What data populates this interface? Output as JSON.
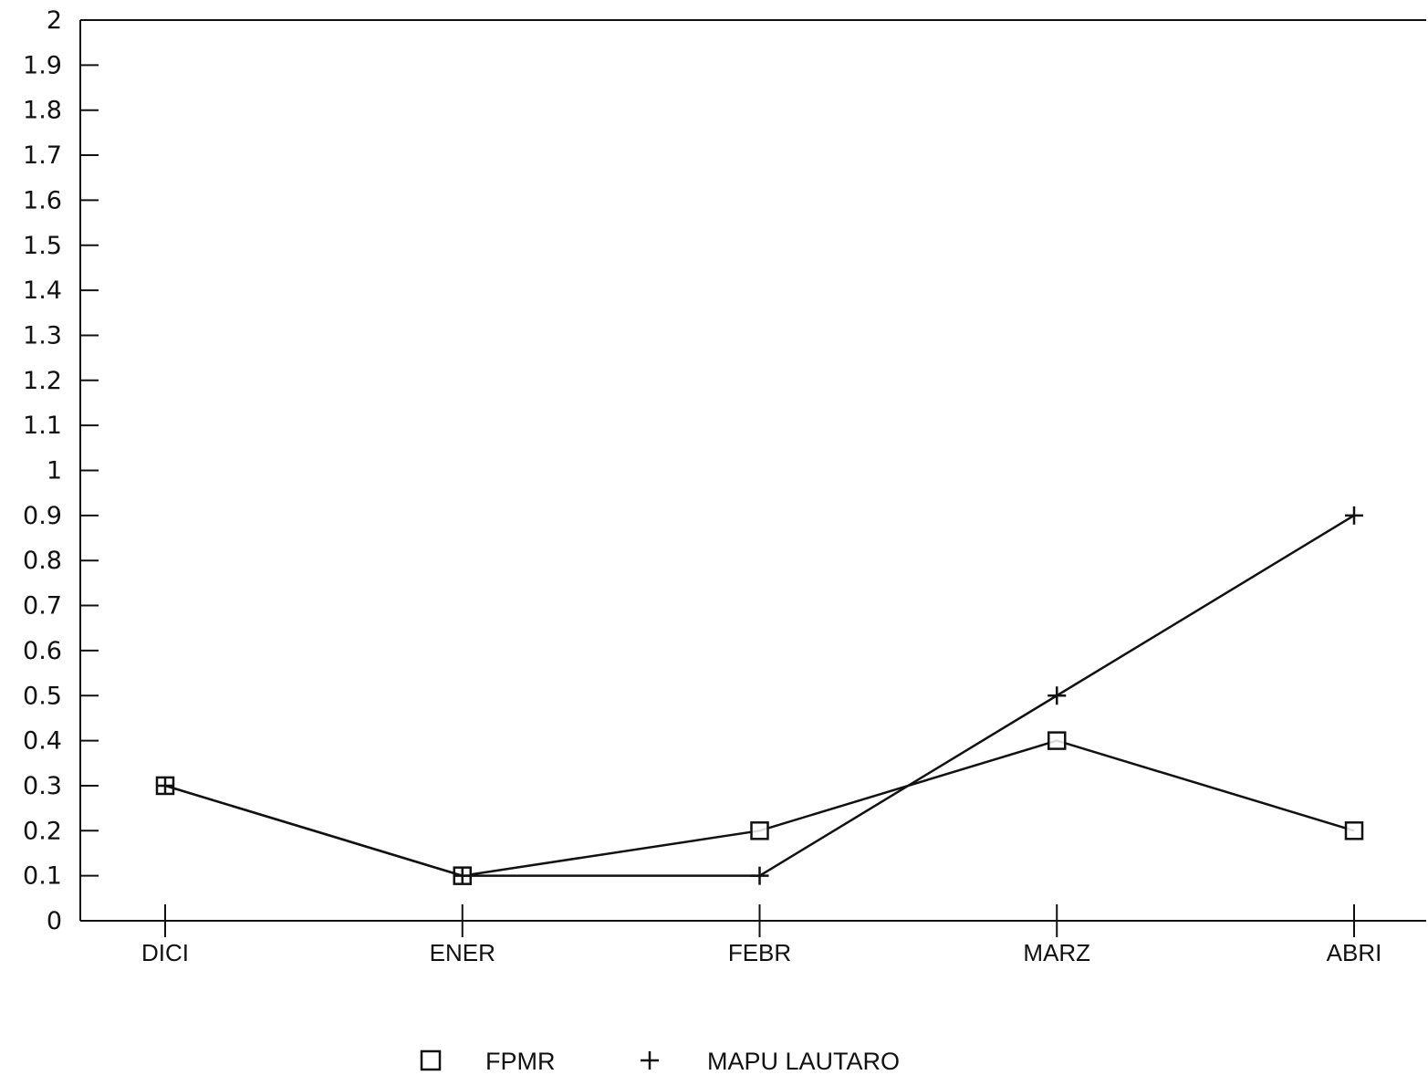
{
  "chart_data": {
    "type": "line",
    "title": "",
    "xlabel": "",
    "ylabel": "",
    "categories": [
      "DICI",
      "ENER",
      "FEBR",
      "MARZ",
      "ABRI"
    ],
    "ylim": [
      0,
      2
    ],
    "yticks": [
      "0",
      "0.1",
      "0.2",
      "0.3",
      "0.4",
      "0.5",
      "0.6",
      "0.7",
      "0.8",
      "0.9",
      "1",
      "1.1",
      "1.2",
      "1.3",
      "1.4",
      "1.5",
      "1.6",
      "1.7",
      "1.8",
      "1.9",
      "2"
    ],
    "series": [
      {
        "name": "FPMR",
        "marker": "square",
        "values": [
          0.3,
          0.1,
          0.2,
          0.4,
          0.2
        ]
      },
      {
        "name": "MAPU LAUTARO",
        "marker": "plus",
        "values": [
          0.3,
          0.1,
          0.1,
          0.5,
          0.9
        ]
      }
    ],
    "legend": {
      "placement": "bottom",
      "symbols": [
        "□",
        "+"
      ]
    },
    "grid": false,
    "colors": {
      "line": "#111111",
      "background": "#ffffff"
    }
  }
}
